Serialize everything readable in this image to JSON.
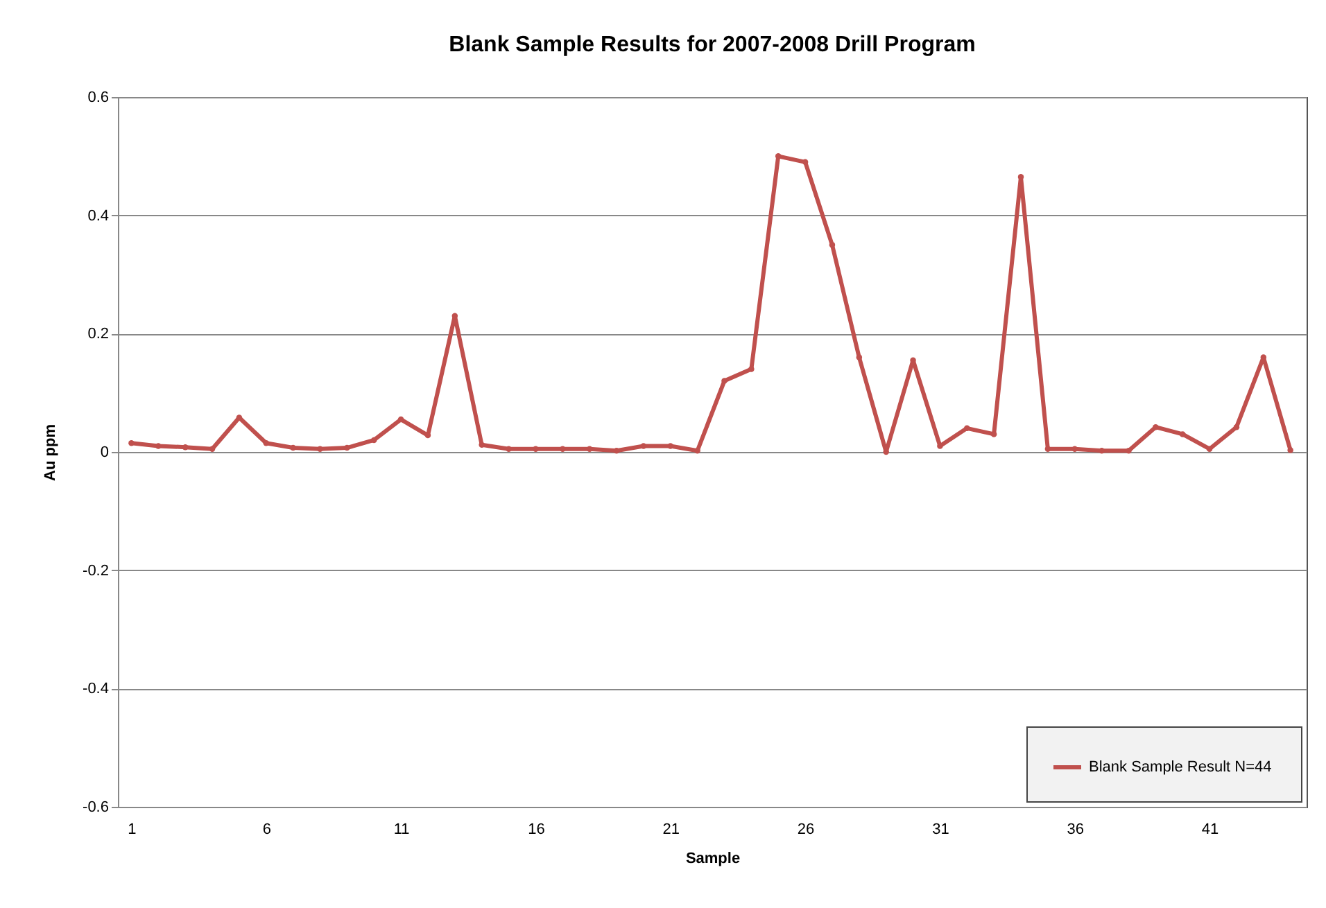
{
  "chart_data": {
    "type": "line",
    "title": "Blank Sample Results  for 2007-2008 Drill Program",
    "xlabel": "Sample",
    "ylabel": "Au ppm",
    "x": [
      1,
      2,
      3,
      4,
      5,
      6,
      7,
      8,
      9,
      10,
      11,
      12,
      13,
      14,
      15,
      16,
      17,
      18,
      19,
      20,
      21,
      22,
      23,
      24,
      25,
      26,
      27,
      28,
      29,
      30,
      31,
      32,
      33,
      34,
      35,
      36,
      37,
      38,
      39,
      40,
      41,
      42,
      43,
      44
    ],
    "series": [
      {
        "name": "Blank Sample  Result N=44",
        "color": "#c0504d",
        "values": [
          0.015,
          0.01,
          0.008,
          0.005,
          0.058,
          0.015,
          0.007,
          0.005,
          0.007,
          0.02,
          0.055,
          0.028,
          0.23,
          0.012,
          0.005,
          0.005,
          0.005,
          0.005,
          0.002,
          0.01,
          0.01,
          0.002,
          0.12,
          0.14,
          0.5,
          0.49,
          0.35,
          0.16,
          0,
          0.155,
          0.01,
          0.04,
          0.03,
          0.465,
          0.005,
          0.005,
          0.002,
          0.002,
          0.042,
          0.03,
          0.005,
          0.042,
          0.16,
          0.003
        ]
      }
    ],
    "xlim": [
      0.5,
      44.6
    ],
    "xticks": [
      1,
      6,
      11,
      16,
      21,
      26,
      31,
      36,
      41
    ],
    "ylim": [
      -0.6,
      0.6
    ],
    "yticks": [
      -0.6,
      -0.4,
      -0.2,
      0,
      0.2,
      0.4,
      0.6
    ],
    "grid": "y",
    "legend": "bottom right",
    "marker": "circle",
    "line_style": "solid"
  }
}
